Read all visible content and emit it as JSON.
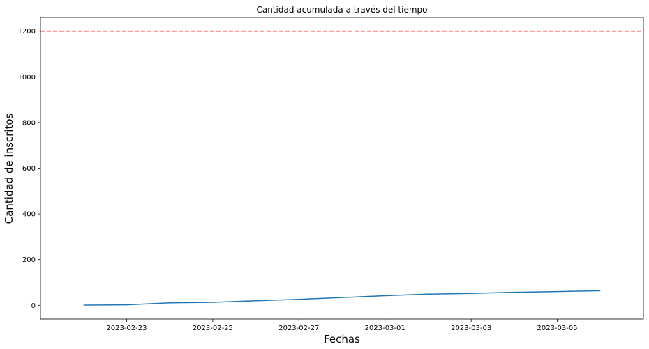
{
  "chart_data": {
    "type": "line",
    "title": "Cantidad acumulada a través del tiempo",
    "xlabel": "Fechas",
    "ylabel": "Cantidad de inscritos",
    "x_axis_type": "date",
    "xlim": [
      "2023-02-21",
      "2023-03-07"
    ],
    "ylim": [
      -60,
      1260
    ],
    "x_ticks": [
      "2023-02-23",
      "2023-02-25",
      "2023-02-27",
      "2023-03-01",
      "2023-03-03",
      "2023-03-05"
    ],
    "y_ticks": [
      0,
      200,
      400,
      600,
      800,
      1000,
      1200
    ],
    "grid": false,
    "series": [
      {
        "color": "#1f77b4",
        "x": [
          "2023-02-22",
          "2023-02-23",
          "2023-02-24",
          "2023-02-25",
          "2023-02-26",
          "2023-02-27",
          "2023-02-28",
          "2023-03-01",
          "2023-03-02",
          "2023-03-03",
          "2023-03-04",
          "2023-03-05",
          "2023-03-06"
        ],
        "y": [
          1,
          2,
          11,
          13,
          20,
          26,
          34,
          42,
          49,
          52,
          57,
          60,
          64
        ]
      }
    ],
    "reference_line": {
      "orientation": "horizontal",
      "y": 1200,
      "color": "#ff0000",
      "style": "dashed"
    }
  }
}
